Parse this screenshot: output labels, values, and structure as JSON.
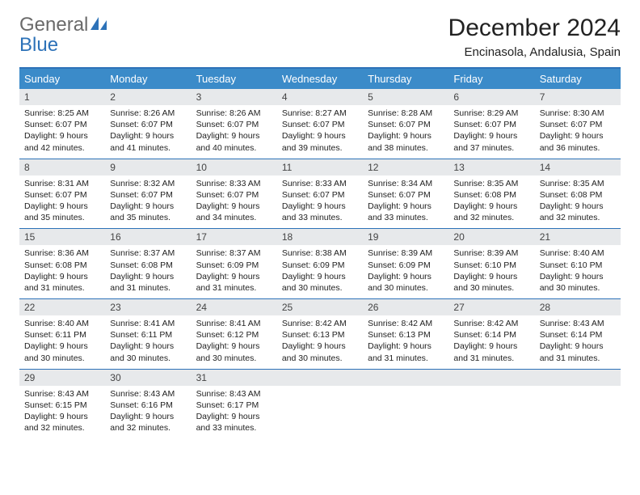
{
  "brand": {
    "line1": "General",
    "line2": "Blue",
    "text_color": "#6a6a6a",
    "accent_color": "#2d72b8"
  },
  "title": {
    "month": "December 2024",
    "location": "Encinasola, Andalusia, Spain"
  },
  "colors": {
    "header_bg": "#3b8bc9",
    "row_border": "#2d72b8",
    "daynum_bg": "#e7e9eb"
  },
  "days_of_week": [
    "Sunday",
    "Monday",
    "Tuesday",
    "Wednesday",
    "Thursday",
    "Friday",
    "Saturday"
  ],
  "weeks": [
    [
      {
        "n": "1",
        "sunrise": "Sunrise: 8:25 AM",
        "sunset": "Sunset: 6:07 PM",
        "day1": "Daylight: 9 hours",
        "day2": "and 42 minutes."
      },
      {
        "n": "2",
        "sunrise": "Sunrise: 8:26 AM",
        "sunset": "Sunset: 6:07 PM",
        "day1": "Daylight: 9 hours",
        "day2": "and 41 minutes."
      },
      {
        "n": "3",
        "sunrise": "Sunrise: 8:26 AM",
        "sunset": "Sunset: 6:07 PM",
        "day1": "Daylight: 9 hours",
        "day2": "and 40 minutes."
      },
      {
        "n": "4",
        "sunrise": "Sunrise: 8:27 AM",
        "sunset": "Sunset: 6:07 PM",
        "day1": "Daylight: 9 hours",
        "day2": "and 39 minutes."
      },
      {
        "n": "5",
        "sunrise": "Sunrise: 8:28 AM",
        "sunset": "Sunset: 6:07 PM",
        "day1": "Daylight: 9 hours",
        "day2": "and 38 minutes."
      },
      {
        "n": "6",
        "sunrise": "Sunrise: 8:29 AM",
        "sunset": "Sunset: 6:07 PM",
        "day1": "Daylight: 9 hours",
        "day2": "and 37 minutes."
      },
      {
        "n": "7",
        "sunrise": "Sunrise: 8:30 AM",
        "sunset": "Sunset: 6:07 PM",
        "day1": "Daylight: 9 hours",
        "day2": "and 36 minutes."
      }
    ],
    [
      {
        "n": "8",
        "sunrise": "Sunrise: 8:31 AM",
        "sunset": "Sunset: 6:07 PM",
        "day1": "Daylight: 9 hours",
        "day2": "and 35 minutes."
      },
      {
        "n": "9",
        "sunrise": "Sunrise: 8:32 AM",
        "sunset": "Sunset: 6:07 PM",
        "day1": "Daylight: 9 hours",
        "day2": "and 35 minutes."
      },
      {
        "n": "10",
        "sunrise": "Sunrise: 8:33 AM",
        "sunset": "Sunset: 6:07 PM",
        "day1": "Daylight: 9 hours",
        "day2": "and 34 minutes."
      },
      {
        "n": "11",
        "sunrise": "Sunrise: 8:33 AM",
        "sunset": "Sunset: 6:07 PM",
        "day1": "Daylight: 9 hours",
        "day2": "and 33 minutes."
      },
      {
        "n": "12",
        "sunrise": "Sunrise: 8:34 AM",
        "sunset": "Sunset: 6:07 PM",
        "day1": "Daylight: 9 hours",
        "day2": "and 33 minutes."
      },
      {
        "n": "13",
        "sunrise": "Sunrise: 8:35 AM",
        "sunset": "Sunset: 6:08 PM",
        "day1": "Daylight: 9 hours",
        "day2": "and 32 minutes."
      },
      {
        "n": "14",
        "sunrise": "Sunrise: 8:35 AM",
        "sunset": "Sunset: 6:08 PM",
        "day1": "Daylight: 9 hours",
        "day2": "and 32 minutes."
      }
    ],
    [
      {
        "n": "15",
        "sunrise": "Sunrise: 8:36 AM",
        "sunset": "Sunset: 6:08 PM",
        "day1": "Daylight: 9 hours",
        "day2": "and 31 minutes."
      },
      {
        "n": "16",
        "sunrise": "Sunrise: 8:37 AM",
        "sunset": "Sunset: 6:08 PM",
        "day1": "Daylight: 9 hours",
        "day2": "and 31 minutes."
      },
      {
        "n": "17",
        "sunrise": "Sunrise: 8:37 AM",
        "sunset": "Sunset: 6:09 PM",
        "day1": "Daylight: 9 hours",
        "day2": "and 31 minutes."
      },
      {
        "n": "18",
        "sunrise": "Sunrise: 8:38 AM",
        "sunset": "Sunset: 6:09 PM",
        "day1": "Daylight: 9 hours",
        "day2": "and 30 minutes."
      },
      {
        "n": "19",
        "sunrise": "Sunrise: 8:39 AM",
        "sunset": "Sunset: 6:09 PM",
        "day1": "Daylight: 9 hours",
        "day2": "and 30 minutes."
      },
      {
        "n": "20",
        "sunrise": "Sunrise: 8:39 AM",
        "sunset": "Sunset: 6:10 PM",
        "day1": "Daylight: 9 hours",
        "day2": "and 30 minutes."
      },
      {
        "n": "21",
        "sunrise": "Sunrise: 8:40 AM",
        "sunset": "Sunset: 6:10 PM",
        "day1": "Daylight: 9 hours",
        "day2": "and 30 minutes."
      }
    ],
    [
      {
        "n": "22",
        "sunrise": "Sunrise: 8:40 AM",
        "sunset": "Sunset: 6:11 PM",
        "day1": "Daylight: 9 hours",
        "day2": "and 30 minutes."
      },
      {
        "n": "23",
        "sunrise": "Sunrise: 8:41 AM",
        "sunset": "Sunset: 6:11 PM",
        "day1": "Daylight: 9 hours",
        "day2": "and 30 minutes."
      },
      {
        "n": "24",
        "sunrise": "Sunrise: 8:41 AM",
        "sunset": "Sunset: 6:12 PM",
        "day1": "Daylight: 9 hours",
        "day2": "and 30 minutes."
      },
      {
        "n": "25",
        "sunrise": "Sunrise: 8:42 AM",
        "sunset": "Sunset: 6:13 PM",
        "day1": "Daylight: 9 hours",
        "day2": "and 30 minutes."
      },
      {
        "n": "26",
        "sunrise": "Sunrise: 8:42 AM",
        "sunset": "Sunset: 6:13 PM",
        "day1": "Daylight: 9 hours",
        "day2": "and 31 minutes."
      },
      {
        "n": "27",
        "sunrise": "Sunrise: 8:42 AM",
        "sunset": "Sunset: 6:14 PM",
        "day1": "Daylight: 9 hours",
        "day2": "and 31 minutes."
      },
      {
        "n": "28",
        "sunrise": "Sunrise: 8:43 AM",
        "sunset": "Sunset: 6:14 PM",
        "day1": "Daylight: 9 hours",
        "day2": "and 31 minutes."
      }
    ],
    [
      {
        "n": "29",
        "sunrise": "Sunrise: 8:43 AM",
        "sunset": "Sunset: 6:15 PM",
        "day1": "Daylight: 9 hours",
        "day2": "and 32 minutes."
      },
      {
        "n": "30",
        "sunrise": "Sunrise: 8:43 AM",
        "sunset": "Sunset: 6:16 PM",
        "day1": "Daylight: 9 hours",
        "day2": "and 32 minutes."
      },
      {
        "n": "31",
        "sunrise": "Sunrise: 8:43 AM",
        "sunset": "Sunset: 6:17 PM",
        "day1": "Daylight: 9 hours",
        "day2": "and 33 minutes."
      },
      {
        "empty": true
      },
      {
        "empty": true
      },
      {
        "empty": true
      },
      {
        "empty": true
      }
    ]
  ]
}
